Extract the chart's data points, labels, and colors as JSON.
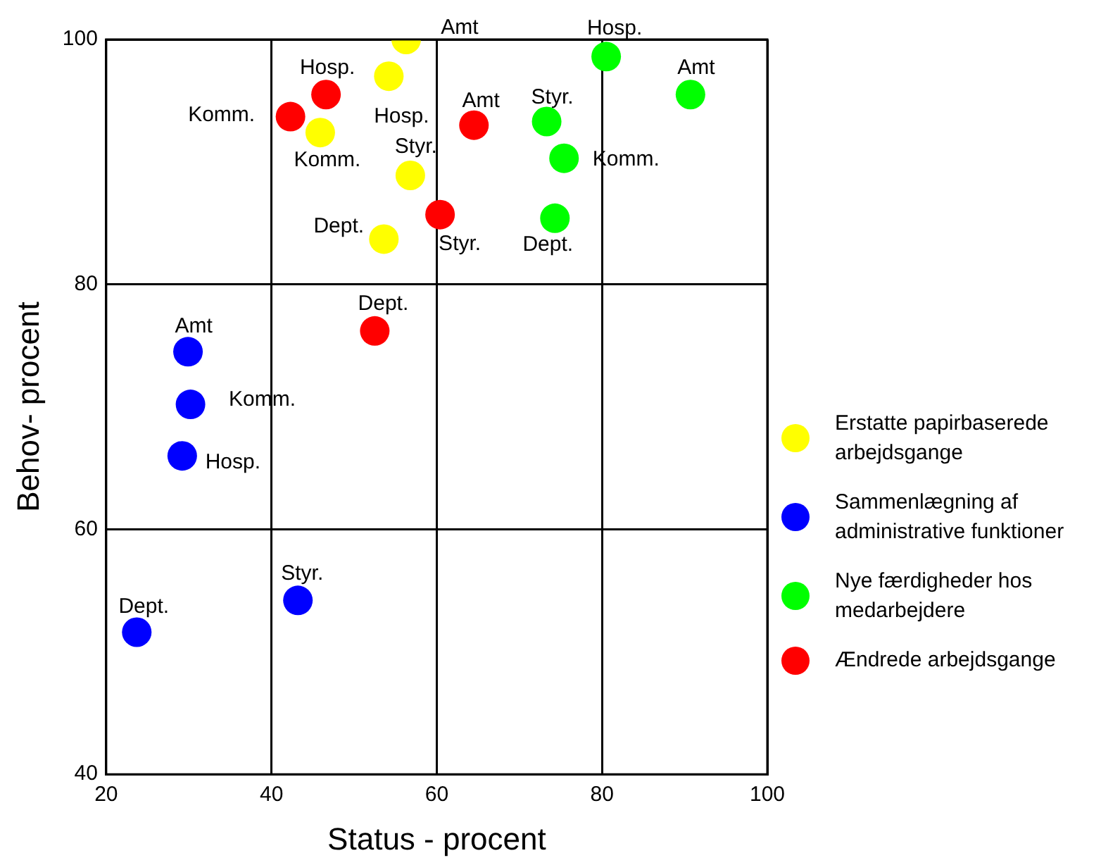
{
  "chart_data": {
    "type": "scatter",
    "xlabel": "Status - procent",
    "ylabel": "Behov- procent",
    "xlim": [
      20,
      100
    ],
    "xticks": [
      20,
      40,
      60,
      80,
      100
    ],
    "ylim": [
      40,
      100
    ],
    "yticks": [
      40,
      60,
      80,
      100
    ],
    "grid": true,
    "legend": "right",
    "marker": "circle",
    "series": [
      {
        "name": "Erstatte papirbaserede arbejdsgange",
        "color": "#ffff00",
        "x": [
          56.3,
          54.2,
          45.9,
          56.8,
          53.6
        ],
        "values": [
          100,
          97.0,
          92.4,
          88.9,
          83.7
        ]
      },
      {
        "name": "Sammenlægning af administrative funktioner",
        "color": "#0000ff",
        "x": [
          29.9,
          30.2,
          29.2,
          43.2,
          23.7
        ],
        "values": [
          74.5,
          70.2,
          66.0,
          54.2,
          51.6
        ]
      },
      {
        "name": "Nye færdigheder hos medarbejdere",
        "color": "#00ff00",
        "x": [
          80.5,
          90.7,
          73.3,
          75.4,
          74.3
        ],
        "values": [
          98.6,
          95.5,
          93.3,
          90.3,
          85.4
        ]
      },
      {
        "name": "Ændrede arbejdsgange",
        "color": "#ff0000",
        "x": [
          46.6,
          42.3,
          64.5,
          60.4,
          52.5
        ],
        "values": [
          95.5,
          93.7,
          93.0,
          85.7,
          76.2
        ]
      }
    ],
    "annotations": [
      {
        "text": "Amt",
        "x": 56.3,
        "y": 100
      },
      {
        "text": "Hosp.",
        "x": 54.2,
        "y": 97.0
      },
      {
        "text": "Komm.",
        "x": 45.9,
        "y": 92.4
      },
      {
        "text": "Styr.",
        "x": 56.8,
        "y": 88.9
      },
      {
        "text": "Dept.",
        "x": 53.6,
        "y": 83.7
      },
      {
        "text": "Amt",
        "x": 29.9,
        "y": 74.5
      },
      {
        "text": "Komm.",
        "x": 30.2,
        "y": 70.2
      },
      {
        "text": "Hosp.",
        "x": 29.2,
        "y": 66.0
      },
      {
        "text": "Styr.",
        "x": 43.2,
        "y": 54.2
      },
      {
        "text": "Dept.",
        "x": 23.7,
        "y": 51.6
      },
      {
        "text": "Hosp.",
        "x": 80.5,
        "y": 98.6
      },
      {
        "text": "Amt",
        "x": 90.7,
        "y": 95.5
      },
      {
        "text": "Styr.",
        "x": 73.3,
        "y": 93.3
      },
      {
        "text": "Komm.",
        "x": 75.4,
        "y": 90.3
      },
      {
        "text": "Dept.",
        "x": 74.3,
        "y": 85.4
      },
      {
        "text": "Hosp.",
        "x": 46.6,
        "y": 95.5
      },
      {
        "text": "Komm.",
        "x": 42.3,
        "y": 93.7
      },
      {
        "text": "Amt",
        "x": 64.5,
        "y": 93.0
      },
      {
        "text": "Styr.",
        "x": 60.4,
        "y": 85.7
      },
      {
        "text": "Dept.",
        "x": 52.5,
        "y": 76.2
      }
    ]
  }
}
